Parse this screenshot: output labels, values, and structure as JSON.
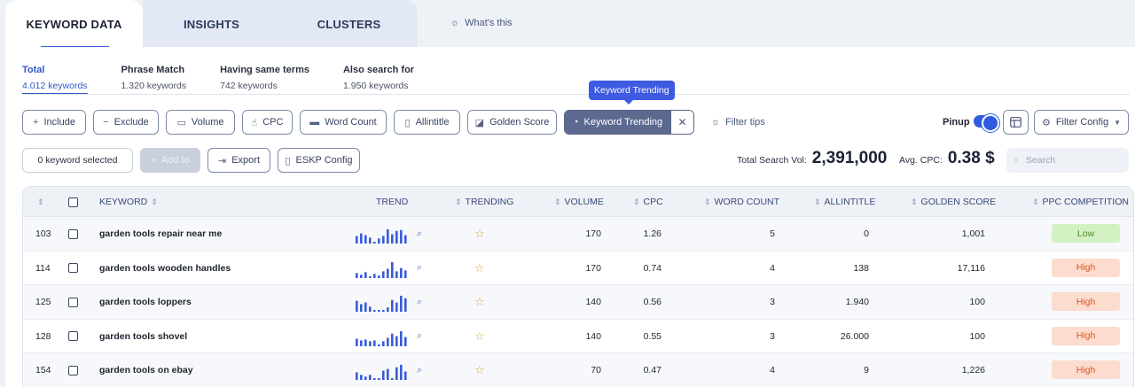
{
  "top_tabs": [
    {
      "label": "KEYWORD DATA",
      "active": true
    },
    {
      "label": "INSIGHTS",
      "active": false
    },
    {
      "label": "CLUSTERS",
      "active": false
    }
  ],
  "whats_this": "What's this",
  "subtabs": [
    {
      "title": "Total",
      "count": "4.012 keywords",
      "active": true
    },
    {
      "title": "Phrase Match",
      "count": "1.320 keywords",
      "active": false
    },
    {
      "title": "Having same terms",
      "count": "742 keywords",
      "active": false
    },
    {
      "title": "Also search for",
      "count": "1.950 keywords",
      "active": false
    }
  ],
  "filters": {
    "include": "Include",
    "exclude": "Exclude",
    "volume": "Volume",
    "cpc": "CPC",
    "word_count": "Word Count",
    "allintitle": "Allintitle",
    "golden_score": "Golden Score",
    "keyword_trending": "Keyword Trending",
    "tooltip": "Keyword Trending",
    "filter_tips": "Filter tips",
    "pinup": "Pinup",
    "pinup_on": true,
    "filter_config": "Filter Config"
  },
  "actions": {
    "selected": "0 keyword selected",
    "add_to": "Add to",
    "export": "Export",
    "eskp_config": "ESKP Config"
  },
  "totals": {
    "search_vol_label": "Total Search Vol:",
    "search_vol_value": "2,391,000",
    "avg_cpc_label": "Avg. CPC:",
    "avg_cpc_value": "0.38 $"
  },
  "search": {
    "placeholder": "Search"
  },
  "table": {
    "headers": {
      "keyword": "KEYWORD",
      "trend": "TREND",
      "trending": "TRENDING",
      "volume": "VOLUME",
      "cpc": "CPC",
      "word_count": "WORD COUNT",
      "allintitle": "ALLINTITLE",
      "golden_score": "GOLDEN SCORE",
      "ppc_competition": "PPC COMPETITION"
    },
    "rows": [
      {
        "id": "103",
        "keyword": "garden tools repair near me",
        "trend": [
          0.45,
          0.6,
          0.5,
          0.35,
          0.1,
          0.3,
          0.45,
          0.85,
          0.55,
          0.75,
          0.8,
          0.5
        ],
        "volume": "170",
        "cpc": "1.26",
        "word_count": "5",
        "allintitle": "0",
        "golden_score": "1,001",
        "competition": "Low"
      },
      {
        "id": "114",
        "keyword": "garden tools wooden handles",
        "trend": [
          0.3,
          0.2,
          0.35,
          0.1,
          0.25,
          0.15,
          0.4,
          0.55,
          0.95,
          0.4,
          0.6,
          0.45
        ],
        "volume": "170",
        "cpc": "0.74",
        "word_count": "4",
        "allintitle": "138",
        "golden_score": "17,116",
        "competition": "High"
      },
      {
        "id": "125",
        "keyword": "garden tools loppers",
        "trend": [
          0.65,
          0.45,
          0.55,
          0.3,
          0.1,
          0.1,
          0.1,
          0.25,
          0.7,
          0.55,
          0.95,
          0.8
        ],
        "volume": "140",
        "cpc": "0.56",
        "word_count": "3",
        "allintitle": "1.940",
        "golden_score": "100",
        "competition": "High"
      },
      {
        "id": "128",
        "keyword": "garden tools shovel",
        "trend": [
          0.45,
          0.35,
          0.4,
          0.3,
          0.35,
          0.1,
          0.3,
          0.5,
          0.75,
          0.6,
          0.9,
          0.55
        ],
        "volume": "140",
        "cpc": "0.55",
        "word_count": "3",
        "allintitle": "26.000",
        "golden_score": "100",
        "competition": "High"
      },
      {
        "id": "154",
        "keyword": "garden tools on ebay",
        "trend": [
          0.45,
          0.3,
          0.2,
          0.3,
          0.1,
          0.1,
          0.55,
          0.65,
          0.1,
          0.75,
          0.9,
          0.5
        ],
        "volume": "70",
        "cpc": "0.47",
        "word_count": "4",
        "allintitle": "9",
        "golden_score": "1,226",
        "competition": "High"
      }
    ]
  },
  "colors": {
    "accent": "#3157c9",
    "trend_bar": "#3a5bd9",
    "low_bg": "#d4f1c4",
    "low_fg": "#4d8a2f",
    "high_bg": "#fbdccf",
    "high_fg": "#e0541f"
  }
}
